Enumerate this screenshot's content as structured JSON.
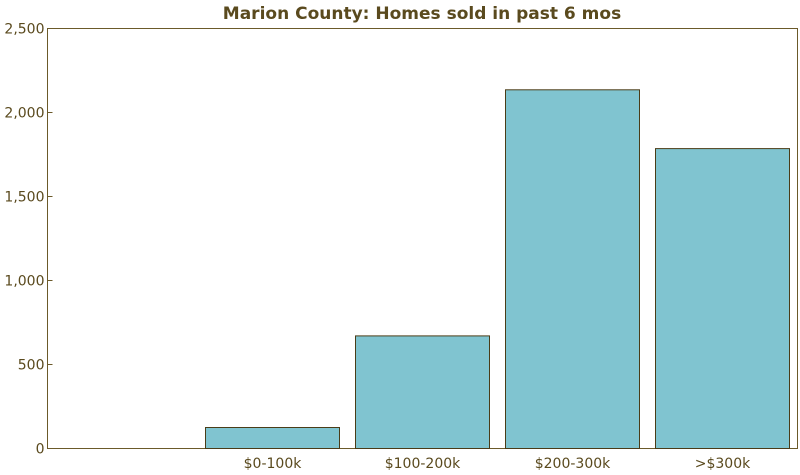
{
  "chart_data": {
    "type": "bar",
    "title": "Marion County: Homes sold in past 6 mos",
    "xlabel": "",
    "ylabel": "",
    "categories": [
      "$0-100k",
      "$100-200k",
      "$200-300k",
      ">$300k"
    ],
    "values": [
      125,
      670,
      2135,
      1785
    ],
    "ylim": [
      0,
      2500
    ],
    "yticks": [
      0,
      500,
      1000,
      1500,
      2000,
      2500
    ],
    "ytick_labels": [
      "0",
      "500",
      "1,000",
      "1,500",
      "2,000",
      "2,500"
    ],
    "grid": false,
    "legend": "none",
    "colors": {
      "bar": "#80c4d0",
      "bar_edge": "#4a3c18",
      "text": "#5a4a1e",
      "frame": "#6b5a2a"
    }
  }
}
